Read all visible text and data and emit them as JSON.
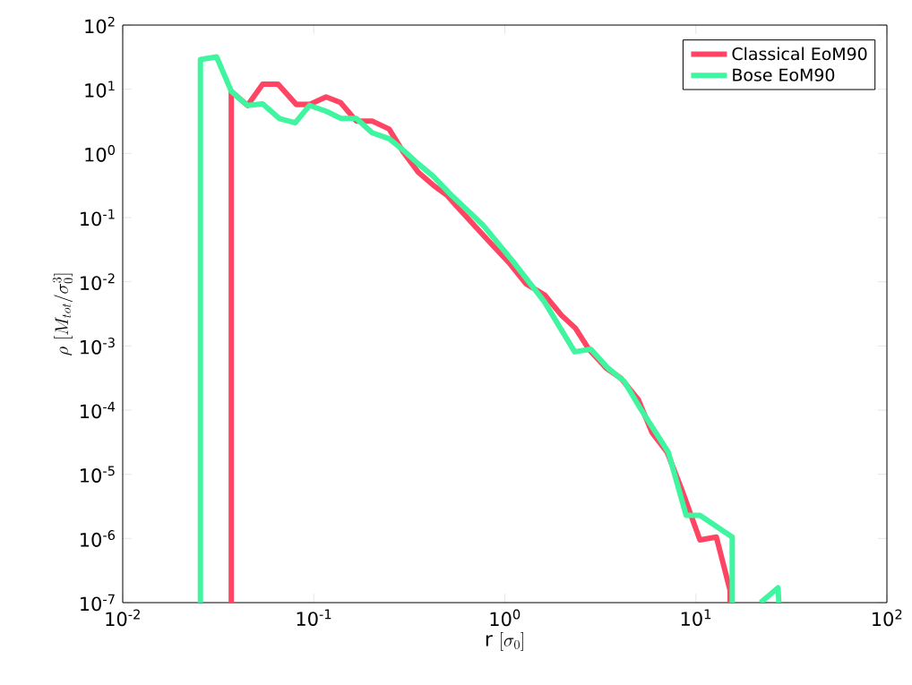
{
  "chart_data": {
    "type": "line",
    "xlabel": "\\mathrm{r}\\ [\\sigma_0]",
    "ylabel": "\\rho\\ [M_{tot}/\\sigma_0^3]",
    "log": "xy",
    "legend": "top right",
    "xlim": [
      0.01,
      100
    ],
    "ylim": [
      1e-07,
      100
    ],
    "xticks": [
      {
        "value": 0.01,
        "label": "10$^{-2}$"
      },
      {
        "value": 0.1,
        "label": "10$^{-1}$"
      },
      {
        "value": 1,
        "label": "10$^{0}$"
      },
      {
        "value": 10,
        "label": "10$^{1}$"
      },
      {
        "value": 100,
        "label": "10$^{2}$"
      }
    ],
    "yticks": [
      {
        "value": 1e-07,
        "label": "10$^{-7}$"
      },
      {
        "value": 1e-06,
        "label": "10$^{-6}$"
      },
      {
        "value": 1e-05,
        "label": "10$^{-5}$"
      },
      {
        "value": 0.0001,
        "label": "10$^{-4}$"
      },
      {
        "value": 0.001,
        "label": "10$^{-3}$"
      },
      {
        "value": 0.01,
        "label": "10$^{-2}$"
      },
      {
        "value": 0.1,
        "label": "10$^{-1}$"
      },
      {
        "value": 1,
        "label": "10$^{0}$"
      },
      {
        "value": 10,
        "label": "10$^{1}$"
      },
      {
        "value": 100,
        "label": "10$^{2}$"
      }
    ],
    "series": [
      {
        "name": "Classical EoM90",
        "color": "#ff4563",
        "x": [
          0.037,
          0.037,
          0.045,
          0.054,
          0.065,
          0.081,
          0.095,
          0.116,
          0.138,
          0.167,
          0.202,
          0.248,
          0.294,
          0.352,
          0.422,
          0.5,
          0.6,
          0.83,
          1.05,
          1.29,
          1.62,
          1.98,
          2.34,
          2.75,
          3.4,
          4.07,
          5.0,
          5.89,
          7.08,
          8.43,
          10.5,
          12.8,
          15.1,
          15.1
        ],
        "values": [
          1e-07,
          9.3,
          5.6,
          12,
          12,
          5.8,
          5.8,
          7.6,
          6.2,
          3.2,
          3.2,
          2.4,
          1.05,
          0.51,
          0.32,
          0.22,
          0.12,
          0.042,
          0.02,
          0.0093,
          0.0062,
          0.003,
          0.0019,
          0.00089,
          0.00045,
          0.00031,
          0.000145,
          4.5e-05,
          2.2e-05,
          5.8e-06,
          9.5e-07,
          1.05e-06,
          1.55e-07,
          1e-07
        ]
      },
      {
        "name": "Bose EoM90",
        "color": "#40f5a0",
        "x": [
          0.0255,
          0.0255,
          0.031,
          0.037,
          0.045,
          0.054,
          0.066,
          0.08,
          0.095,
          0.117,
          0.139,
          0.167,
          0.202,
          0.248,
          0.294,
          0.352,
          0.422,
          0.52,
          0.77,
          1.1,
          1.36,
          1.61,
          2.32,
          2.82,
          3.47,
          4.22,
          5.13,
          7.18,
          8.89,
          10.5,
          15.5,
          15.5,
          18.5,
          21.8,
          26.9,
          27.2
        ],
        "values": [
          1e-07,
          29,
          32,
          9.3,
          5.6,
          5.9,
          3.5,
          3.0,
          5.6,
          4.5,
          3.5,
          3.5,
          2.1,
          1.7,
          1.12,
          0.69,
          0.44,
          0.23,
          0.076,
          0.021,
          0.0093,
          0.0049,
          0.00081,
          0.00089,
          0.00045,
          0.00028,
          0.000105,
          2.2e-05,
          2.3e-06,
          2.3e-06,
          1.05e-06,
          1e-07,
          null,
          1e-07,
          1.7e-07,
          1e-07
        ]
      }
    ]
  }
}
